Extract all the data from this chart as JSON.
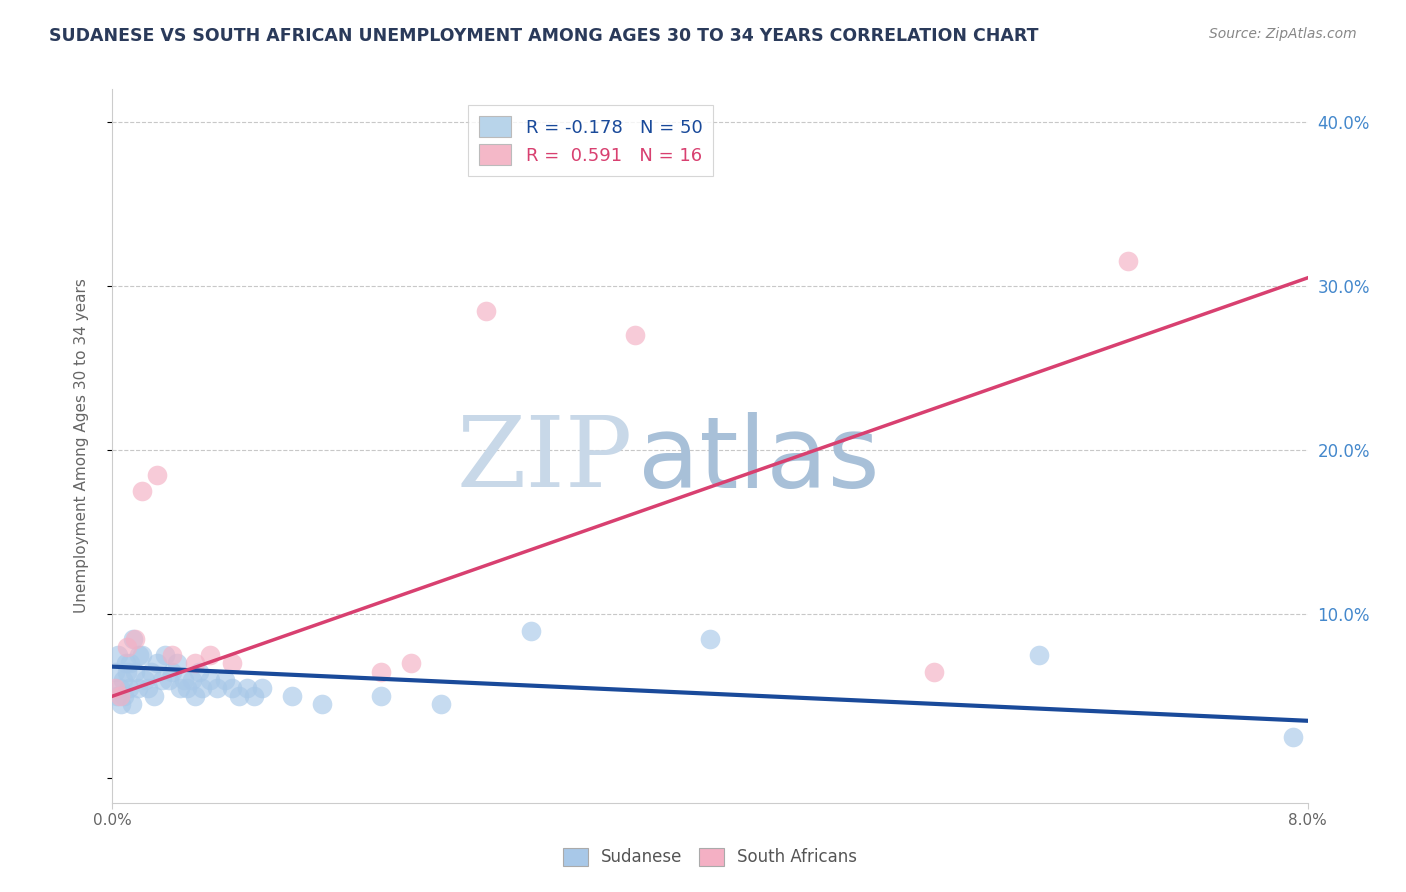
{
  "title": "SUDANESE VS SOUTH AFRICAN UNEMPLOYMENT AMONG AGES 30 TO 34 YEARS CORRELATION CHART",
  "source": "Source: ZipAtlas.com",
  "ylabel": "Unemployment Among Ages 30 to 34 years",
  "xlim": [
    0.0,
    8.0
  ],
  "ylim": [
    -1.5,
    42.0
  ],
  "yticks": [
    0.0,
    10.0,
    20.0,
    30.0,
    40.0
  ],
  "ytick_labels": [
    "",
    "10.0%",
    "20.0%",
    "30.0%",
    "40.0%"
  ],
  "gridline_y": [
    10.0,
    20.0,
    30.0,
    40.0
  ],
  "legend_entries": [
    {
      "label": "R = -0.178   N = 50",
      "color": "#b8d4ea"
    },
    {
      "label": "R =  0.591   N = 16",
      "color": "#f4b8c8"
    }
  ],
  "sudanese_x": [
    0.02,
    0.03,
    0.04,
    0.05,
    0.06,
    0.07,
    0.08,
    0.09,
    0.1,
    0.11,
    0.12,
    0.13,
    0.14,
    0.15,
    0.17,
    0.18,
    0.2,
    0.22,
    0.24,
    0.26,
    0.28,
    0.3,
    0.33,
    0.35,
    0.38,
    0.4,
    0.43,
    0.45,
    0.48,
    0.5,
    0.53,
    0.55,
    0.58,
    0.6,
    0.65,
    0.7,
    0.75,
    0.8,
    0.85,
    0.9,
    0.95,
    1.0,
    1.2,
    1.4,
    1.8,
    2.2,
    2.8,
    4.0,
    6.2,
    7.9
  ],
  "sudanese_y": [
    6.5,
    5.0,
    7.5,
    5.5,
    4.5,
    6.0,
    5.0,
    7.0,
    6.5,
    5.5,
    7.0,
    4.5,
    8.5,
    6.5,
    5.5,
    7.5,
    7.5,
    6.0,
    5.5,
    6.5,
    5.0,
    7.0,
    6.0,
    7.5,
    6.0,
    6.5,
    7.0,
    5.5,
    6.0,
    5.5,
    6.0,
    5.0,
    6.5,
    5.5,
    6.0,
    5.5,
    6.0,
    5.5,
    5.0,
    5.5,
    5.0,
    5.5,
    5.0,
    4.5,
    5.0,
    4.5,
    9.0,
    8.5,
    7.5,
    2.5
  ],
  "south_african_x": [
    0.02,
    0.05,
    0.1,
    0.15,
    0.2,
    0.3,
    0.4,
    0.55,
    0.65,
    0.8,
    1.8,
    2.0,
    2.5,
    3.5,
    5.5,
    6.8
  ],
  "south_african_y": [
    5.5,
    5.0,
    8.0,
    8.5,
    17.5,
    18.5,
    7.5,
    7.0,
    7.5,
    7.0,
    6.5,
    7.0,
    28.5,
    27.0,
    6.5,
    31.5
  ],
  "blue_line_x": [
    0.0,
    8.0
  ],
  "blue_line_y": [
    6.8,
    3.5
  ],
  "pink_line_x": [
    0.0,
    8.0
  ],
  "pink_line_y": [
    5.0,
    30.5
  ],
  "scatter_color_blue": "#a8c8e8",
  "scatter_color_pink": "#f4b0c4",
  "line_color_blue": "#1a4a9a",
  "line_color_pink": "#d84070",
  "watermark_zip": "ZIP",
  "watermark_atlas": "atlas",
  "watermark_color_zip": "#c8d8e8",
  "watermark_color_atlas": "#a8c0d8",
  "background_color": "#ffffff",
  "title_color": "#2a3a5a",
  "source_color": "#888888"
}
